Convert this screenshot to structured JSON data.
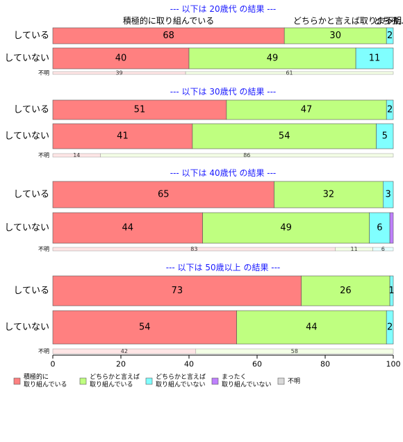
{
  "chart_data": {
    "type": "bar",
    "orientation": "horizontal",
    "stacked": true,
    "xlim": [
      0,
      100
    ],
    "xticks": [
      0,
      20,
      40,
      60,
      80,
      100
    ],
    "header_labels": {
      "col1": "積極的に取り組んでいる",
      "col2": "どちらかと言えば取り...",
      "col3": "どちら...",
      "col4": "まった...",
      "col5": "不明"
    },
    "series": [
      {
        "name": "積極的に\n取り組んでいる",
        "color": "#ff8080"
      },
      {
        "name": "どちらかと言えば\n取り組んでいる",
        "color": "#bfff80"
      },
      {
        "name": "どちらかと言えば\n取り組んでいない",
        "color": "#80ffff"
      },
      {
        "name": "まったく\n取り組んでいない",
        "color": "#bf80ff"
      },
      {
        "name": "不明",
        "color": "#d9d9d9"
      }
    ],
    "groups": [
      {
        "title": "--- 以下は 20歳代 の結果 ---",
        "rows": [
          {
            "label": "している",
            "values": [
              68,
              30,
              2,
              0,
              0
            ]
          },
          {
            "label": "していない",
            "values": [
              40,
              49,
              11,
              0,
              0
            ]
          }
        ],
        "unknown": {
          "label": "不明",
          "values": [
            39,
            61,
            0,
            0,
            0
          ]
        }
      },
      {
        "title": "--- 以下は 30歳代 の結果 ---",
        "rows": [
          {
            "label": "している",
            "values": [
              51,
              47,
              2,
              0,
              0
            ]
          },
          {
            "label": "していない",
            "values": [
              41,
              54,
              5,
              0,
              0
            ]
          }
        ],
        "unknown": {
          "label": "不明",
          "values": [
            14,
            86,
            0,
            0,
            0
          ]
        }
      },
      {
        "title": "--- 以下は 40歳代 の結果 ---",
        "rows": [
          {
            "label": "している",
            "values": [
              65,
              32,
              3,
              0,
              0
            ]
          },
          {
            "label": "していない",
            "values": [
              44,
              49,
              6,
              1,
              0
            ]
          }
        ],
        "unknown": {
          "label": "不明",
          "values": [
            83,
            11,
            6,
            0,
            0
          ]
        }
      },
      {
        "title": "--- 以下は 50歳以上 の結果 ---",
        "rows": [
          {
            "label": "している",
            "values": [
              73,
              26,
              1,
              0,
              0
            ]
          },
          {
            "label": "していない",
            "values": [
              54,
              44,
              2,
              0,
              0
            ]
          }
        ],
        "unknown": {
          "label": "不明",
          "values": [
            42,
            58,
            0,
            0,
            0
          ]
        }
      }
    ]
  }
}
